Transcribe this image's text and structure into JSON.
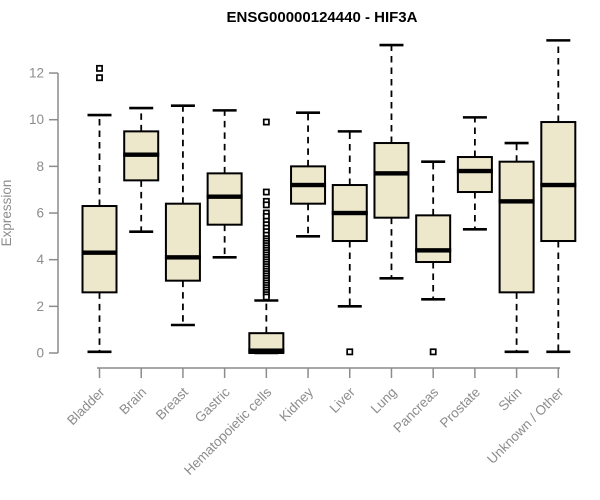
{
  "title": "ENSG00000124440 - HIF3A",
  "chart_data": {
    "type": "boxplot",
    "title": "ENSG00000124440 - HIF3A",
    "xlabel": "",
    "ylabel": "Expression",
    "ylim": [
      0,
      12
    ],
    "yticks": [
      0,
      2,
      4,
      6,
      8,
      10,
      12
    ],
    "grid": false,
    "legend": false,
    "box_fill": "#ede7cc",
    "box_stroke": "#000000",
    "axis_color": "#8c8c8c",
    "categories": [
      "Bladder",
      "Brain",
      "Breast",
      "Gastric",
      "Hematopoietic cells",
      "Kidney",
      "Liver",
      "Lung",
      "Pancreas",
      "Prostate",
      "Skin",
      "Unknown / Other"
    ],
    "series": [
      {
        "category": "Bladder",
        "whisker_low": 0.05,
        "q1": 2.6,
        "median": 4.3,
        "q3": 6.3,
        "whisker_high": 10.2,
        "outliers": [
          11.8,
          12.2
        ]
      },
      {
        "category": "Brain",
        "whisker_low": 5.2,
        "q1": 7.4,
        "median": 8.5,
        "q3": 9.5,
        "whisker_high": 10.5,
        "outliers": []
      },
      {
        "category": "Breast",
        "whisker_low": 1.2,
        "q1": 3.1,
        "median": 4.1,
        "q3": 6.4,
        "whisker_high": 10.6,
        "outliers": []
      },
      {
        "category": "Gastric",
        "whisker_low": 4.1,
        "q1": 5.5,
        "median": 6.7,
        "q3": 7.7,
        "whisker_high": 10.4,
        "outliers": []
      },
      {
        "category": "Hematopoietic cells",
        "whisker_low": 0.0,
        "q1": 0.0,
        "median": 0.1,
        "q3": 0.85,
        "whisker_high": 2.25,
        "outliers": [
          9.9,
          6.9,
          6.5,
          6.35,
          6.0,
          5.85,
          5.65,
          5.5,
          5.35,
          5.2,
          5.05,
          4.9,
          4.8,
          4.7,
          4.6,
          4.5,
          4.4,
          4.3,
          4.2,
          4.1,
          4.0,
          3.9,
          3.8,
          3.7,
          3.6,
          3.5,
          3.4,
          3.3,
          3.2,
          3.1,
          3.0,
          2.9,
          2.8,
          2.7,
          2.6,
          2.5,
          2.4
        ]
      },
      {
        "category": "Kidney",
        "whisker_low": 5.0,
        "q1": 6.4,
        "median": 7.2,
        "q3": 8.0,
        "whisker_high": 10.3,
        "outliers": []
      },
      {
        "category": "Liver",
        "whisker_low": 2.0,
        "q1": 4.8,
        "median": 6.0,
        "q3": 7.2,
        "whisker_high": 9.5,
        "outliers": [
          0.05
        ]
      },
      {
        "category": "Lung",
        "whisker_low": 3.2,
        "q1": 5.8,
        "median": 7.7,
        "q3": 9.0,
        "whisker_high": 13.2,
        "outliers": []
      },
      {
        "category": "Pancreas",
        "whisker_low": 2.3,
        "q1": 3.9,
        "median": 4.4,
        "q3": 5.9,
        "whisker_high": 8.2,
        "outliers": [
          0.05
        ]
      },
      {
        "category": "Prostate",
        "whisker_low": 5.3,
        "q1": 6.9,
        "median": 7.8,
        "q3": 8.4,
        "whisker_high": 10.1,
        "outliers": []
      },
      {
        "category": "Skin",
        "whisker_low": 0.05,
        "q1": 2.6,
        "median": 6.5,
        "q3": 8.2,
        "whisker_high": 9.0,
        "outliers": []
      },
      {
        "category": "Unknown / Other",
        "whisker_low": 0.05,
        "q1": 4.8,
        "median": 7.2,
        "q3": 9.9,
        "whisker_high": 13.4,
        "outliers": []
      }
    ]
  }
}
